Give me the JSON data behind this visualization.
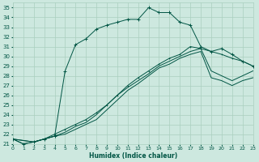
{
  "xlabel": "Humidex (Indice chaleur)",
  "xlim": [
    0,
    23
  ],
  "ylim": [
    21,
    35.5
  ],
  "yticks": [
    21,
    22,
    23,
    24,
    25,
    26,
    27,
    28,
    29,
    30,
    31,
    32,
    33,
    34,
    35
  ],
  "xticks": [
    0,
    1,
    2,
    3,
    4,
    5,
    6,
    7,
    8,
    9,
    10,
    11,
    12,
    13,
    14,
    15,
    16,
    17,
    18,
    19,
    20,
    21,
    22,
    23
  ],
  "bg_color": "#cde8df",
  "grid_color": "#aacfbf",
  "line_color": "#005544",
  "series1_x": [
    0,
    1,
    2,
    3,
    4,
    5,
    6,
    7,
    8,
    9,
    10,
    11,
    12,
    13,
    14,
    15,
    16,
    17,
    18,
    19,
    20,
    21,
    22,
    23
  ],
  "series1_y": [
    21.5,
    21.0,
    21.2,
    21.5,
    21.8,
    28.5,
    31.2,
    31.8,
    32.8,
    33.2,
    33.5,
    33.8,
    33.8,
    35.0,
    34.5,
    34.5,
    33.5,
    33.2,
    31.0,
    30.5,
    30.8,
    30.2,
    29.5,
    29.0
  ],
  "series2_x": [
    0,
    1,
    2,
    3,
    4,
    5,
    6,
    7,
    8,
    9,
    10,
    11,
    12,
    13,
    14,
    15,
    16,
    17,
    18,
    19,
    20,
    21,
    22,
    23
  ],
  "series2_y": [
    21.5,
    21.0,
    21.2,
    21.5,
    22.0,
    22.5,
    23.0,
    23.5,
    24.2,
    25.0,
    26.0,
    27.0,
    27.8,
    28.5,
    29.2,
    29.8,
    30.2,
    31.0,
    30.8,
    30.5,
    30.2,
    29.8,
    29.5,
    29.0
  ],
  "series3_x": [
    0,
    2,
    3,
    4,
    5,
    6,
    7,
    8,
    9,
    10,
    11,
    12,
    13,
    14,
    15,
    16,
    17,
    18,
    19,
    20,
    21,
    22,
    23
  ],
  "series3_y": [
    21.5,
    21.2,
    21.5,
    21.8,
    22.2,
    22.8,
    23.2,
    24.0,
    25.0,
    26.0,
    26.8,
    27.5,
    28.2,
    29.0,
    29.5,
    30.0,
    30.5,
    30.8,
    28.5,
    28.0,
    27.5,
    28.0,
    28.5
  ],
  "series4_x": [
    0,
    2,
    3,
    4,
    5,
    6,
    7,
    8,
    9,
    10,
    11,
    12,
    13,
    14,
    15,
    16,
    17,
    18,
    19,
    20,
    21,
    22,
    23
  ],
  "series4_y": [
    21.5,
    21.2,
    21.5,
    21.8,
    22.0,
    22.5,
    23.0,
    23.5,
    24.5,
    25.5,
    26.5,
    27.2,
    28.0,
    28.8,
    29.2,
    29.8,
    30.2,
    30.5,
    27.8,
    27.5,
    27.0,
    27.5,
    27.8
  ]
}
